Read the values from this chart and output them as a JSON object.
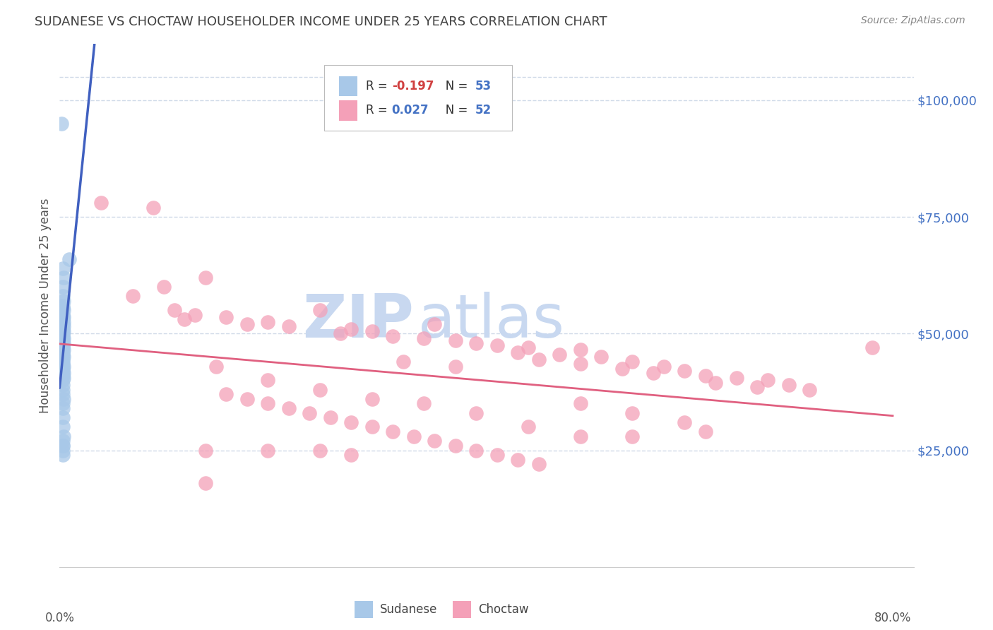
{
  "title": "SUDANESE VS CHOCTAW HOUSEHOLDER INCOME UNDER 25 YEARS CORRELATION CHART",
  "source": "Source: ZipAtlas.com",
  "ylabel": "Householder Income Under 25 years",
  "ytick_values": [
    25000,
    50000,
    75000,
    100000
  ],
  "ylim": [
    0,
    112000
  ],
  "xlim": [
    0.0,
    0.82
  ],
  "r_sudanese": -0.197,
  "n_sudanese": 53,
  "r_choctaw": 0.027,
  "n_choctaw": 52,
  "sudanese_color": "#a8c8e8",
  "choctaw_color": "#f4a0b8",
  "sudanese_line_color": "#4060c0",
  "choctaw_line_color": "#e06080",
  "diagonal_line_color": "#b8cce0",
  "background_color": "#ffffff",
  "grid_color": "#d0dae8",
  "title_color": "#404040",
  "watermark_zip_color": "#c8d8f0",
  "watermark_atlas_color": "#c8d8f0",
  "sudanese_x": [
    0.002,
    0.009,
    0.003,
    0.004,
    0.003,
    0.003,
    0.004,
    0.003,
    0.003,
    0.004,
    0.003,
    0.004,
    0.003,
    0.004,
    0.003,
    0.004,
    0.003,
    0.004,
    0.003,
    0.003,
    0.004,
    0.003,
    0.004,
    0.003,
    0.003,
    0.004,
    0.003,
    0.003,
    0.004,
    0.003,
    0.003,
    0.003,
    0.004,
    0.003,
    0.003,
    0.004,
    0.003,
    0.004,
    0.003,
    0.003,
    0.003,
    0.003,
    0.004,
    0.003,
    0.003,
    0.003,
    0.003,
    0.004,
    0.003,
    0.003,
    0.003,
    0.003,
    0.003
  ],
  "sudanese_y": [
    95000,
    66000,
    64000,
    62000,
    60000,
    58000,
    57000,
    56000,
    55500,
    55000,
    54000,
    53500,
    53000,
    52500,
    52000,
    51500,
    51000,
    50500,
    50000,
    49500,
    49000,
    48500,
    48000,
    47500,
    47000,
    46500,
    46000,
    45500,
    45000,
    44500,
    44000,
    43500,
    43000,
    42500,
    42000,
    41500,
    41000,
    40500,
    40000,
    39000,
    38000,
    37000,
    36000,
    35000,
    34000,
    32000,
    30000,
    28000,
    26000,
    25000,
    27000,
    24000,
    26000
  ],
  "choctaw_x": [
    0.04,
    0.09,
    0.14,
    0.1,
    0.07,
    0.11,
    0.13,
    0.16,
    0.12,
    0.2,
    0.18,
    0.22,
    0.25,
    0.28,
    0.3,
    0.27,
    0.32,
    0.35,
    0.38,
    0.36,
    0.4,
    0.33,
    0.42,
    0.45,
    0.38,
    0.5,
    0.44,
    0.48,
    0.52,
    0.46,
    0.55,
    0.5,
    0.58,
    0.54,
    0.6,
    0.57,
    0.62,
    0.65,
    0.68,
    0.63,
    0.7,
    0.67,
    0.72,
    0.15,
    0.2,
    0.25,
    0.3,
    0.35,
    0.4,
    0.45,
    0.5,
    0.78
  ],
  "choctaw_y": [
    78000,
    77000,
    62000,
    60000,
    58000,
    55000,
    54000,
    53500,
    53000,
    52500,
    52000,
    51500,
    55000,
    51000,
    50500,
    50000,
    49500,
    49000,
    48500,
    52000,
    48000,
    44000,
    47500,
    47000,
    43000,
    46500,
    46000,
    45500,
    45000,
    44500,
    44000,
    43500,
    43000,
    42500,
    42000,
    41500,
    41000,
    40500,
    40000,
    39500,
    39000,
    38500,
    38000,
    43000,
    40000,
    38000,
    36000,
    35000,
    33000,
    30000,
    28000,
    47000
  ],
  "choctaw_low_x": [
    0.14,
    0.2,
    0.14,
    0.16,
    0.18,
    0.2,
    0.22,
    0.24,
    0.26,
    0.28,
    0.3,
    0.32,
    0.34,
    0.36,
    0.38,
    0.4,
    0.42,
    0.44,
    0.46,
    0.55,
    0.5,
    0.55,
    0.6,
    0.62,
    0.25,
    0.28
  ],
  "choctaw_low_y": [
    25000,
    25000,
    18000,
    37000,
    36000,
    35000,
    34000,
    33000,
    32000,
    31000,
    30000,
    29000,
    28000,
    27000,
    26000,
    25000,
    24000,
    23000,
    22000,
    28000,
    35000,
    33000,
    31000,
    29000,
    25000,
    24000
  ]
}
